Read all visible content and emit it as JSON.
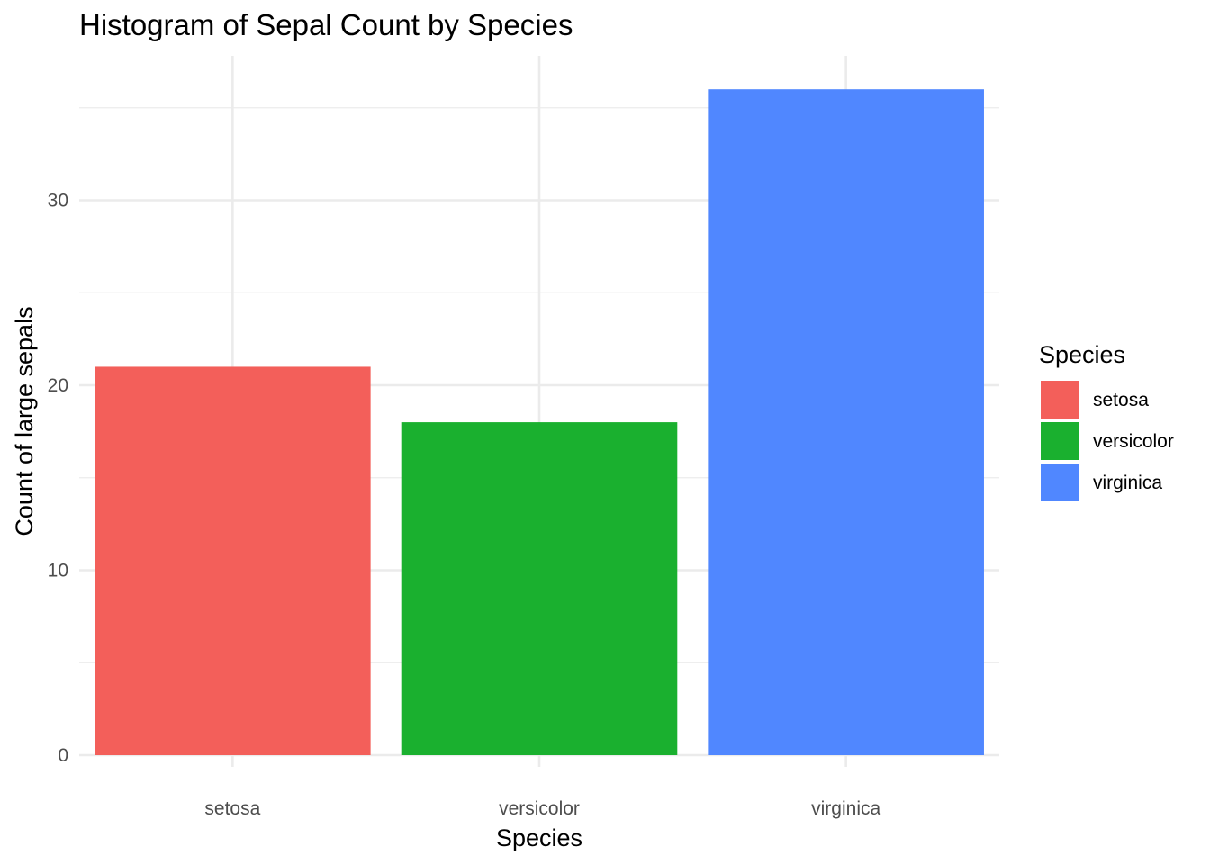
{
  "chart_data": {
    "type": "bar",
    "title": "Histogram of Sepal Count by Species",
    "xlabel": "Species",
    "ylabel": "Count of large sepals",
    "categories": [
      "setosa",
      "versicolor",
      "virginica"
    ],
    "values": [
      21,
      18,
      36
    ],
    "colors": [
      "#F8766D",
      "#00BA38",
      "#619CFF"
    ],
    "bar_colors_rendered": [
      "#F35F5A",
      "#1AB02F",
      "#5087FF"
    ],
    "ylim": [
      0,
      37.8
    ],
    "yticks": [
      0,
      10,
      20,
      30
    ],
    "grid": true,
    "legend": {
      "title": "Species",
      "entries": [
        "setosa",
        "versicolor",
        "virginica"
      ],
      "placement": "right"
    }
  }
}
